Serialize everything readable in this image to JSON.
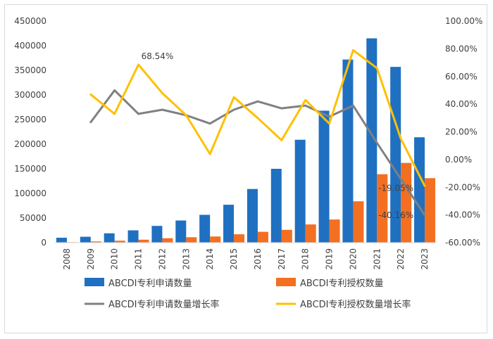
{
  "chart_data": {
    "type": "bar",
    "categories": [
      "2008",
      "2009",
      "2010",
      "2011",
      "2012",
      "2013",
      "2014",
      "2015",
      "2016",
      "2017",
      "2018",
      "2019",
      "2020",
      "2021",
      "2022",
      "2023"
    ],
    "series": [
      {
        "name": "ABCDI专利申请数量",
        "kind": "bar",
        "axis": "left",
        "color": "#1f70c1",
        "values": [
          10000,
          12000,
          19000,
          25000,
          34000,
          45000,
          56500,
          77000,
          109000,
          150000,
          209000,
          268000,
          372000,
          415000,
          357000,
          214000
        ]
      },
      {
        "name": "ABCDI专利授权数量",
        "kind": "bar",
        "axis": "left",
        "color": "#f36f21",
        "values": [
          1000,
          2500,
          4000,
          6000,
          9000,
          11000,
          12500,
          17000,
          22000,
          26000,
          37000,
          47000,
          84000,
          139000,
          162000,
          131000
        ]
      },
      {
        "name": "ABCDI专利申请数量增长率",
        "kind": "line",
        "axis": "right",
        "color": "#808080",
        "values": [
          null,
          27.0,
          50.0,
          33.0,
          36.0,
          32.0,
          26.0,
          36.0,
          42.0,
          37.0,
          39.0,
          31.0,
          39.0,
          12.0,
          -14.0,
          -40.16
        ]
      },
      {
        "name": "ABCDI专利授权数量增长率",
        "kind": "line",
        "axis": "right",
        "color": "#ffc000",
        "values": [
          null,
          47.0,
          33.0,
          68.54,
          48.0,
          32.0,
          4.0,
          45.0,
          30.0,
          14.0,
          43.0,
          26.0,
          79.0,
          66.0,
          15.0,
          -19.05
        ]
      }
    ],
    "y_left": {
      "min": 0,
      "max": 450000,
      "step": 50000,
      "ticks": [
        "0",
        "50000",
        "100000",
        "150000",
        "200000",
        "250000",
        "300000",
        "350000",
        "400000",
        "450000"
      ]
    },
    "y_right": {
      "min": -60,
      "max": 100,
      "step": 20,
      "ticks": [
        "-60.00%",
        "-40.00%",
        "-20.00%",
        "0.00%",
        "20.00%",
        "40.00%",
        "60.00%",
        "80.00%",
        "100.00%"
      ]
    },
    "annotations": [
      {
        "text": "68.54%",
        "series": "ABCDI专利授权数量增长率",
        "category": "2011"
      },
      {
        "text": "-19.05%",
        "series": "ABCDI专利授权数量增长率",
        "category": "2023"
      },
      {
        "text": "-40.16%",
        "series": "ABCDI专利申请数量增长率",
        "category": "2023"
      }
    ],
    "grid": false,
    "legend_position": "bottom"
  }
}
